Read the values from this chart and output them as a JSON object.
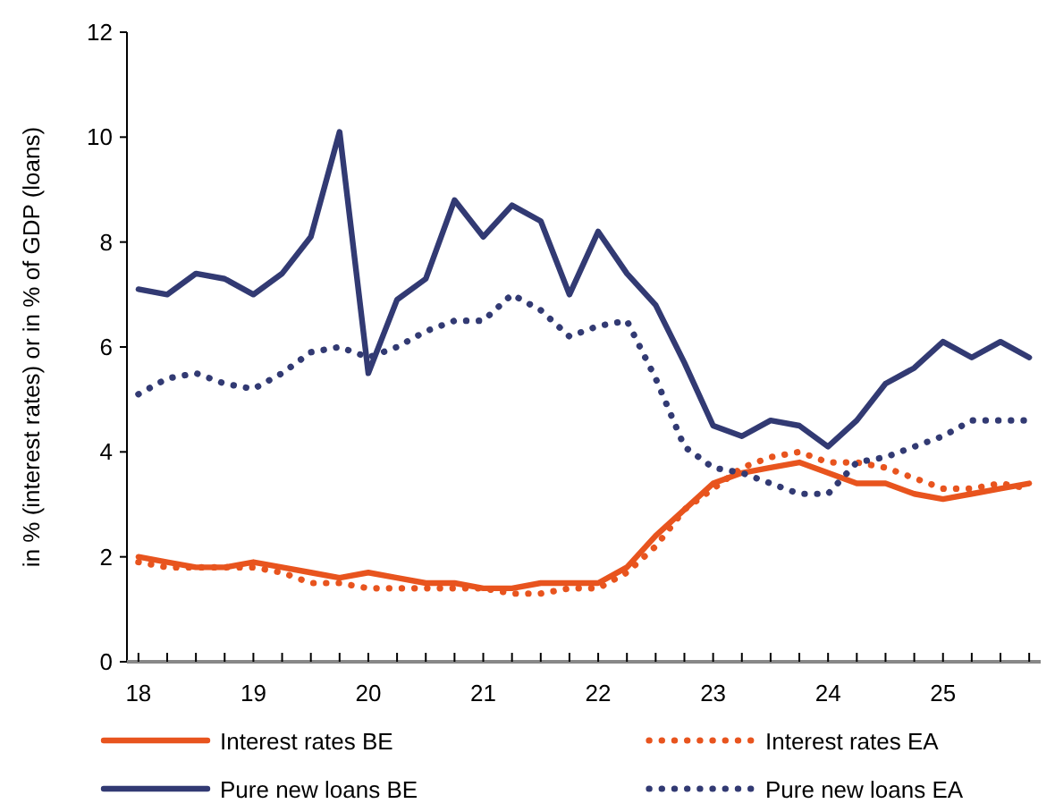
{
  "chart_data": {
    "type": "line",
    "ylabel": "in % (interest rates) or in % of GDP (loans)",
    "x": [
      18,
      18.25,
      18.5,
      18.75,
      19,
      19.25,
      19.5,
      19.75,
      20,
      20.25,
      20.5,
      20.75,
      21,
      21.25,
      21.5,
      21.75,
      22,
      22.25,
      22.5,
      22.75,
      23,
      23.25,
      23.5,
      23.75,
      24,
      24.25,
      24.5,
      24.75,
      25,
      25.25,
      25.5,
      25.75
    ],
    "xlim": [
      17.9,
      25.85
    ],
    "xticks": [
      {
        "value": 18,
        "label": "18"
      },
      {
        "value": 18.25,
        "label": null
      },
      {
        "value": 18.5,
        "label": null
      },
      {
        "value": 18.75,
        "label": null
      },
      {
        "value": 19,
        "label": "19"
      },
      {
        "value": 19.25,
        "label": null
      },
      {
        "value": 19.5,
        "label": null
      },
      {
        "value": 19.75,
        "label": null
      },
      {
        "value": 20,
        "label": "20"
      },
      {
        "value": 20.25,
        "label": null
      },
      {
        "value": 20.5,
        "label": null
      },
      {
        "value": 20.75,
        "label": null
      },
      {
        "value": 21,
        "label": "21"
      },
      {
        "value": 21.25,
        "label": null
      },
      {
        "value": 21.5,
        "label": null
      },
      {
        "value": 21.75,
        "label": null
      },
      {
        "value": 22,
        "label": "22"
      },
      {
        "value": 22.25,
        "label": null
      },
      {
        "value": 22.5,
        "label": null
      },
      {
        "value": 22.75,
        "label": null
      },
      {
        "value": 23,
        "label": "23"
      },
      {
        "value": 23.25,
        "label": null
      },
      {
        "value": 23.5,
        "label": null
      },
      {
        "value": 23.75,
        "label": null
      },
      {
        "value": 24,
        "label": "24"
      },
      {
        "value": 24.25,
        "label": null
      },
      {
        "value": 24.5,
        "label": null
      },
      {
        "value": 24.75,
        "label": null
      },
      {
        "value": 25,
        "label": "25"
      },
      {
        "value": 25.25,
        "label": null
      },
      {
        "value": 25.5,
        "label": null
      },
      {
        "value": 25.75,
        "label": null
      }
    ],
    "ylim": [
      0,
      12
    ],
    "yticks": [
      0,
      2,
      4,
      6,
      8,
      10,
      12
    ],
    "grid": false,
    "legend": "bottom",
    "series": [
      {
        "name": "Interest rates BE",
        "color": "#e8541e",
        "line_style": "solid",
        "values": [
          2.0,
          1.9,
          1.8,
          1.8,
          1.9,
          1.8,
          1.7,
          1.6,
          1.7,
          1.6,
          1.5,
          1.5,
          1.4,
          1.4,
          1.5,
          1.5,
          1.5,
          1.8,
          2.4,
          2.9,
          3.4,
          3.6,
          3.7,
          3.8,
          3.6,
          3.4,
          3.4,
          3.2,
          3.1,
          3.2,
          3.3,
          3.4
        ]
      },
      {
        "name": "Interest rates EA",
        "color": "#e8541e",
        "line_style": "dotted",
        "values": [
          1.9,
          1.8,
          1.8,
          1.8,
          1.8,
          1.7,
          1.5,
          1.5,
          1.4,
          1.4,
          1.4,
          1.4,
          1.4,
          1.3,
          1.3,
          1.4,
          1.4,
          1.7,
          2.2,
          2.9,
          3.3,
          3.7,
          3.9,
          4.0,
          3.8,
          3.8,
          3.7,
          3.5,
          3.3,
          3.3,
          3.4,
          3.3
        ]
      },
      {
        "name": "Pure new loans BE",
        "color": "#323a73",
        "line_style": "solid",
        "values": [
          7.1,
          7.0,
          7.4,
          7.3,
          7.0,
          7.4,
          8.1,
          10.1,
          5.5,
          6.9,
          7.3,
          8.8,
          8.1,
          8.7,
          8.4,
          7.0,
          8.2,
          7.4,
          6.8,
          5.7,
          4.5,
          4.3,
          4.6,
          4.5,
          4.1,
          4.6,
          5.3,
          5.6,
          6.1,
          5.8,
          6.1,
          5.8
        ]
      },
      {
        "name": "Pure new loans EA",
        "color": "#323a73",
        "line_style": "dotted",
        "values": [
          5.1,
          5.4,
          5.5,
          5.3,
          5.2,
          5.5,
          5.9,
          6.0,
          5.8,
          6.0,
          6.3,
          6.5,
          6.5,
          7.0,
          6.7,
          6.2,
          6.4,
          6.5,
          5.4,
          4.1,
          3.7,
          3.6,
          3.4,
          3.2,
          3.2,
          3.8,
          3.9,
          4.1,
          4.3,
          4.6,
          4.6,
          4.6
        ]
      }
    ]
  }
}
